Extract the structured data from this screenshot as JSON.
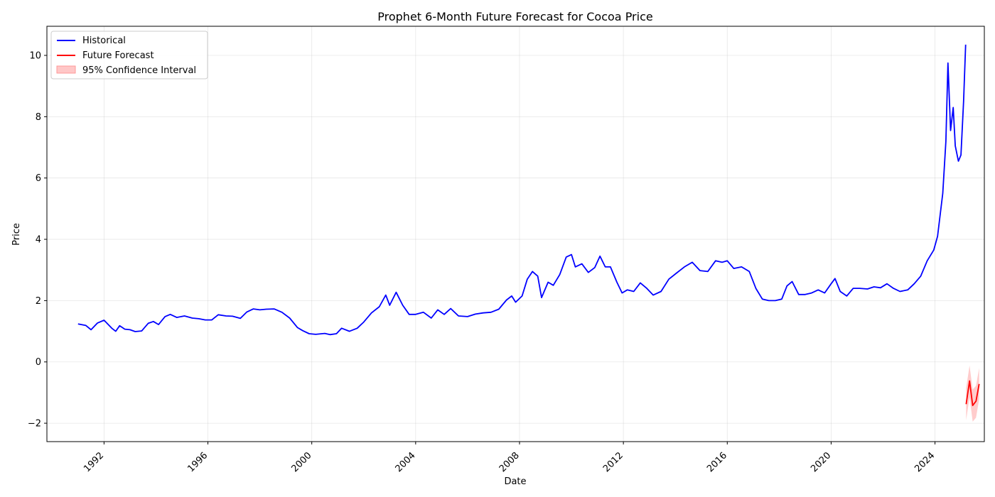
{
  "chart_data": {
    "type": "line",
    "title": "Prophet 6-Month Future Forecast for Cocoa Price",
    "xlabel": "Date",
    "ylabel": "Price",
    "xlim": [
      1989.8,
      2025.9
    ],
    "ylim": [
      -2.6,
      10.95
    ],
    "x_ticks": [
      {
        "value": 1992,
        "label": "1992"
      },
      {
        "value": 1996,
        "label": "1996"
      },
      {
        "value": 2000,
        "label": "2000"
      },
      {
        "value": 2004,
        "label": "2004"
      },
      {
        "value": 2008,
        "label": "2008"
      },
      {
        "value": 2012,
        "label": "2012"
      },
      {
        "value": 2016,
        "label": "2016"
      },
      {
        "value": 2020,
        "label": "2020"
      },
      {
        "value": 2024,
        "label": "2024"
      }
    ],
    "y_ticks": [
      {
        "value": -2,
        "label": "−2"
      },
      {
        "value": 0,
        "label": "0"
      },
      {
        "value": 2,
        "label": "2"
      },
      {
        "value": 4,
        "label": "4"
      },
      {
        "value": 6,
        "label": "6"
      },
      {
        "value": 8,
        "label": "8"
      },
      {
        "value": 10,
        "label": "10"
      }
    ],
    "grid": true,
    "legend_position": "top-left",
    "legend": [
      {
        "label": "Historical",
        "kind": "line",
        "color": "#0000ff"
      },
      {
        "label": "Future Forecast",
        "kind": "line",
        "color": "#ff0000"
      },
      {
        "label": "95% Confidence Interval",
        "kind": "area",
        "color": "#ff0000"
      }
    ],
    "series": [
      {
        "name": "Historical",
        "color": "#0000ff",
        "points": [
          [
            1991.0,
            1.24
          ],
          [
            1991.3,
            1.19
          ],
          [
            1991.5,
            1.05
          ],
          [
            1991.75,
            1.27
          ],
          [
            1992.0,
            1.36
          ],
          [
            1992.3,
            1.1
          ],
          [
            1992.45,
            1.0
          ],
          [
            1992.6,
            1.18
          ],
          [
            1992.8,
            1.07
          ],
          [
            1993.0,
            1.05
          ],
          [
            1993.2,
            0.99
          ],
          [
            1993.45,
            1.01
          ],
          [
            1993.7,
            1.26
          ],
          [
            1993.9,
            1.32
          ],
          [
            1994.1,
            1.22
          ],
          [
            1994.35,
            1.48
          ],
          [
            1994.55,
            1.55
          ],
          [
            1994.8,
            1.45
          ],
          [
            1995.1,
            1.5
          ],
          [
            1995.4,
            1.43
          ],
          [
            1995.65,
            1.41
          ],
          [
            1995.9,
            1.37
          ],
          [
            1996.15,
            1.37
          ],
          [
            1996.4,
            1.54
          ],
          [
            1996.7,
            1.5
          ],
          [
            1996.95,
            1.49
          ],
          [
            1997.25,
            1.42
          ],
          [
            1997.5,
            1.63
          ],
          [
            1997.75,
            1.73
          ],
          [
            1998.0,
            1.7
          ],
          [
            1998.25,
            1.72
          ],
          [
            1998.55,
            1.73
          ],
          [
            1998.85,
            1.62
          ],
          [
            1999.15,
            1.43
          ],
          [
            1999.45,
            1.12
          ],
          [
            1999.65,
            1.02
          ],
          [
            1999.9,
            0.92
          ],
          [
            2000.15,
            0.9
          ],
          [
            2000.5,
            0.93
          ],
          [
            2000.7,
            0.89
          ],
          [
            2000.95,
            0.92
          ],
          [
            2001.15,
            1.1
          ],
          [
            2001.45,
            1.0
          ],
          [
            2001.75,
            1.1
          ],
          [
            2002.0,
            1.3
          ],
          [
            2002.3,
            1.6
          ],
          [
            2002.6,
            1.8
          ],
          [
            2002.85,
            2.18
          ],
          [
            2003.0,
            1.85
          ],
          [
            2003.25,
            2.27
          ],
          [
            2003.5,
            1.85
          ],
          [
            2003.75,
            1.55
          ],
          [
            2004.0,
            1.55
          ],
          [
            2004.3,
            1.62
          ],
          [
            2004.6,
            1.43
          ],
          [
            2004.85,
            1.7
          ],
          [
            2005.1,
            1.55
          ],
          [
            2005.35,
            1.74
          ],
          [
            2005.65,
            1.5
          ],
          [
            2006.0,
            1.48
          ],
          [
            2006.3,
            1.56
          ],
          [
            2006.6,
            1.6
          ],
          [
            2006.9,
            1.62
          ],
          [
            2007.2,
            1.72
          ],
          [
            2007.5,
            2.02
          ],
          [
            2007.7,
            2.15
          ],
          [
            2007.85,
            1.95
          ],
          [
            2008.1,
            2.15
          ],
          [
            2008.3,
            2.7
          ],
          [
            2008.5,
            2.95
          ],
          [
            2008.7,
            2.8
          ],
          [
            2008.85,
            2.1
          ],
          [
            2009.1,
            2.6
          ],
          [
            2009.3,
            2.5
          ],
          [
            2009.55,
            2.85
          ],
          [
            2009.8,
            3.42
          ],
          [
            2010.0,
            3.5
          ],
          [
            2010.15,
            3.1
          ],
          [
            2010.4,
            3.2
          ],
          [
            2010.65,
            2.92
          ],
          [
            2010.9,
            3.08
          ],
          [
            2011.1,
            3.45
          ],
          [
            2011.3,
            3.1
          ],
          [
            2011.5,
            3.1
          ],
          [
            2011.75,
            2.6
          ],
          [
            2011.95,
            2.25
          ],
          [
            2012.15,
            2.35
          ],
          [
            2012.4,
            2.3
          ],
          [
            2012.65,
            2.58
          ],
          [
            2012.9,
            2.4
          ],
          [
            2013.15,
            2.18
          ],
          [
            2013.45,
            2.3
          ],
          [
            2013.75,
            2.7
          ],
          [
            2014.05,
            2.9
          ],
          [
            2014.35,
            3.1
          ],
          [
            2014.65,
            3.25
          ],
          [
            2014.95,
            2.98
          ],
          [
            2015.25,
            2.95
          ],
          [
            2015.55,
            3.3
          ],
          [
            2015.8,
            3.25
          ],
          [
            2016.0,
            3.3
          ],
          [
            2016.25,
            3.05
          ],
          [
            2016.55,
            3.1
          ],
          [
            2016.85,
            2.95
          ],
          [
            2017.1,
            2.4
          ],
          [
            2017.35,
            2.05
          ],
          [
            2017.6,
            2.0
          ],
          [
            2017.85,
            2.0
          ],
          [
            2018.1,
            2.05
          ],
          [
            2018.3,
            2.48
          ],
          [
            2018.5,
            2.62
          ],
          [
            2018.75,
            2.2
          ],
          [
            2019.0,
            2.2
          ],
          [
            2019.25,
            2.25
          ],
          [
            2019.5,
            2.35
          ],
          [
            2019.75,
            2.25
          ],
          [
            2020.0,
            2.55
          ],
          [
            2020.15,
            2.72
          ],
          [
            2020.35,
            2.3
          ],
          [
            2020.6,
            2.15
          ],
          [
            2020.85,
            2.4
          ],
          [
            2021.1,
            2.4
          ],
          [
            2021.4,
            2.38
          ],
          [
            2021.65,
            2.45
          ],
          [
            2021.9,
            2.42
          ],
          [
            2022.15,
            2.55
          ],
          [
            2022.4,
            2.4
          ],
          [
            2022.65,
            2.3
          ],
          [
            2022.95,
            2.35
          ],
          [
            2023.2,
            2.55
          ],
          [
            2023.45,
            2.8
          ],
          [
            2023.7,
            3.3
          ],
          [
            2023.95,
            3.65
          ],
          [
            2024.1,
            4.1
          ],
          [
            2024.3,
            5.5
          ],
          [
            2024.42,
            7.2
          ],
          [
            2024.5,
            9.75
          ],
          [
            2024.6,
            7.55
          ],
          [
            2024.7,
            8.3
          ],
          [
            2024.78,
            7.05
          ],
          [
            2024.9,
            6.55
          ],
          [
            2025.0,
            6.75
          ],
          [
            2025.1,
            8.5
          ],
          [
            2025.18,
            10.35
          ]
        ]
      },
      {
        "name": "Future Forecast",
        "color": "#ff0000",
        "points": [
          [
            2025.2,
            -1.38
          ],
          [
            2025.33,
            -0.62
          ],
          [
            2025.45,
            -1.42
          ],
          [
            2025.58,
            -1.28
          ],
          [
            2025.7,
            -0.72
          ]
        ]
      }
    ],
    "confidence_interval": {
      "name": "95% Confidence Interval",
      "color": "#ff0000",
      "lower": [
        [
          2025.2,
          -1.9
        ],
        [
          2025.33,
          -1.15
        ],
        [
          2025.45,
          -1.95
        ],
        [
          2025.58,
          -1.82
        ],
        [
          2025.7,
          -1.22
        ]
      ],
      "upper": [
        [
          2025.2,
          -0.85
        ],
        [
          2025.33,
          -0.12
        ],
        [
          2025.45,
          -0.9
        ],
        [
          2025.58,
          -0.78
        ],
        [
          2025.7,
          -0.2
        ]
      ]
    }
  }
}
